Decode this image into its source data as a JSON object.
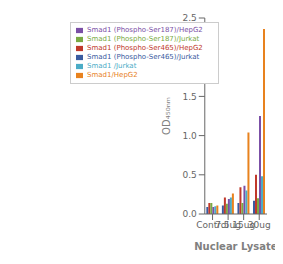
{
  "chart_data": {
    "type": "bar",
    "categories": [
      "Control",
      "7.5ug",
      "15ug",
      "30ug"
    ],
    "series": [
      {
        "name": "Smad1 (Phospho-Ser465)/Jurkat",
        "color": "#3a5ba0",
        "values": [
          0.09,
          0.11,
          0.14,
          0.17
        ]
      },
      {
        "name": "Smad1 (Phospho-Ser465)/HepG2",
        "color": "#c0392b",
        "values": [
          0.14,
          0.21,
          0.34,
          0.5
        ]
      },
      {
        "name": "Smad1 (Phospho-Ser187)/Jurkat",
        "color": "#7aaa44",
        "values": [
          0.14,
          0.13,
          0.14,
          0.2
        ]
      },
      {
        "name": "Smad1 (Phospho-Ser187)/HepG2",
        "color": "#7b4fa6",
        "values": [
          0.09,
          0.19,
          0.36,
          1.25
        ]
      },
      {
        "name": "Smad1 /Jurkat",
        "color": "#4bacc6",
        "values": [
          0.1,
          0.21,
          0.3,
          0.48
        ]
      },
      {
        "name": "Smad1/HepG2",
        "color": "#e8821e",
        "values": [
          0.11,
          0.26,
          1.04,
          2.36
        ]
      }
    ],
    "xlabel": "Nuclear Lysate",
    "ylabel": "OD₄₅₀ₙₘ",
    "ylim": [
      0,
      2.5
    ],
    "yticks": [
      {
        "value": 0,
        "label": "0.0"
      },
      0.5,
      {
        "value": 1.0,
        "label": "1.0"
      },
      1.5,
      {
        "value": 2.0,
        "label": "2.0"
      },
      2.5
    ],
    "grid": false,
    "legend": "upper left"
  }
}
